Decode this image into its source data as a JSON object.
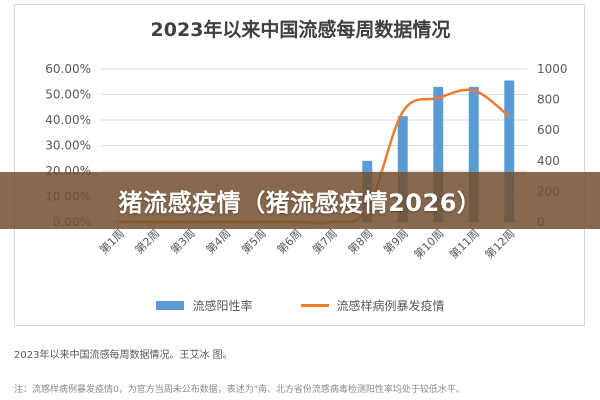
{
  "overlay": {
    "headline": "猪流感疫情（猪流感疫情2026）"
  },
  "caption": "2023年以来中国流感每周数据情况。王艾冰 图。",
  "note": "注：流感样病例暴发疫情0，为官方当周未公布数据，表述为\"南、北方省份流感病毒检测阳性率均处于较低水平。",
  "colors": {
    "bar": "#5b9bd5",
    "line": "#ed7d31",
    "grid": "#d9d9d9",
    "text": "#595959"
  },
  "chart_data": {
    "type": "bar",
    "title": "2023年以来中国流感每周数据情况",
    "categories": [
      "第1周",
      "第2周",
      "第3周",
      "第4周",
      "第5周",
      "第6周",
      "第7周",
      "第8周",
      "第9周",
      "第10周",
      "第11周",
      "第12周"
    ],
    "series": [
      {
        "name": "流感阳性率",
        "type": "bar",
        "axis": "left",
        "values": [
          0,
          0,
          0,
          0,
          0,
          0,
          0.5,
          24,
          41.5,
          53,
          53,
          55.5
        ]
      },
      {
        "name": "流感样病例暴发疫情",
        "type": "line",
        "axis": "right",
        "values": [
          0,
          0,
          0,
          0,
          0,
          0,
          0,
          80,
          720,
          810,
          860,
          690
        ]
      }
    ],
    "y_left": {
      "min": 0,
      "max": 60,
      "step": 10,
      "format": "percent"
    },
    "y_right": {
      "min": 0,
      "max": 1000,
      "step": 200
    },
    "grid": true,
    "legend_position": "bottom"
  }
}
